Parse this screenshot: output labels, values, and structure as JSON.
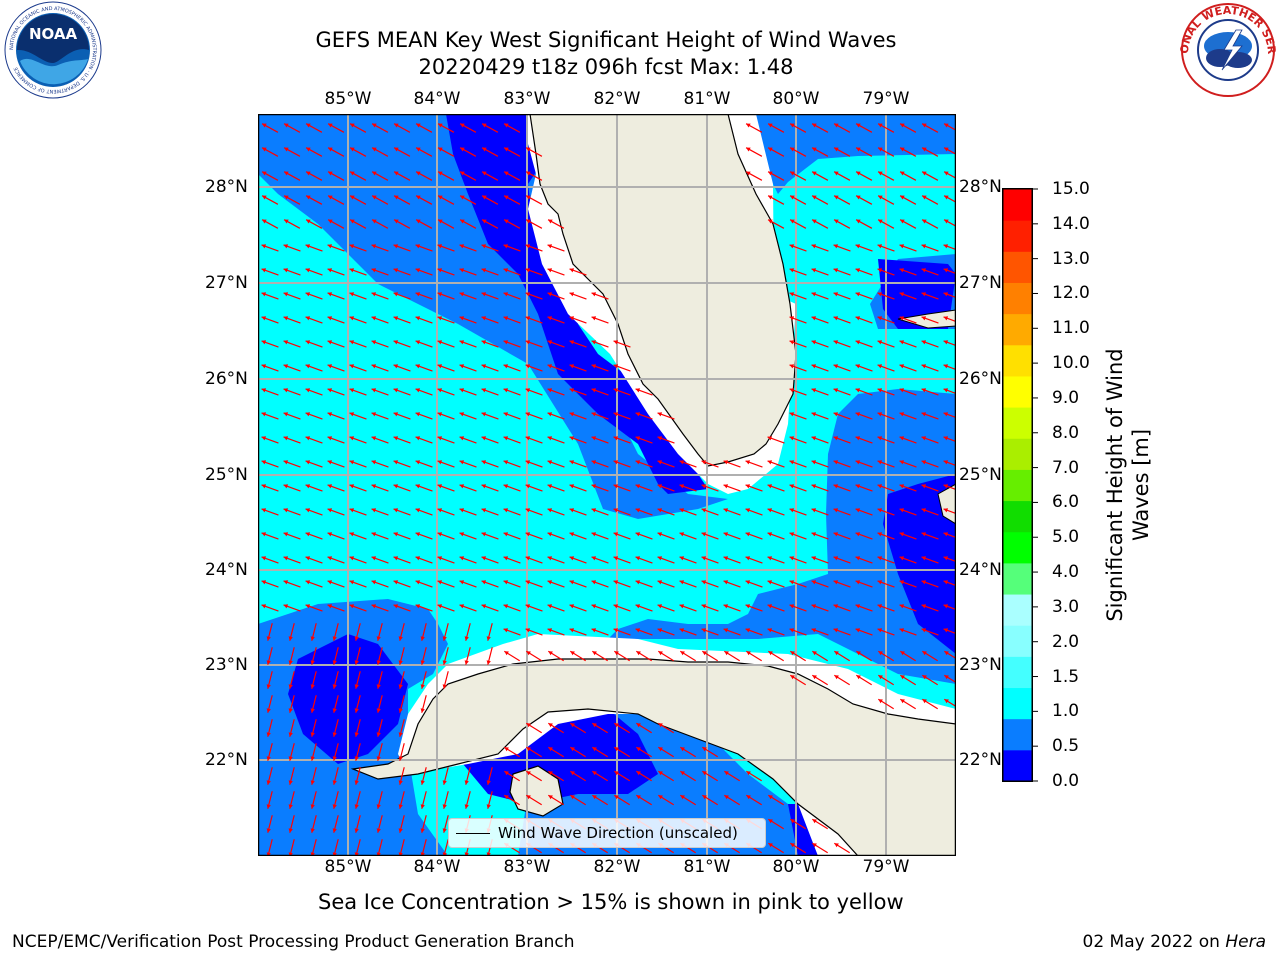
{
  "title": {
    "line1": "GEFS MEAN Key West Significant Height of Wind Waves",
    "line2": "20220429 t18z 096h fcst   Max: 1.48"
  },
  "logos": {
    "left": {
      "name": "noaa-logo",
      "text": "NOAA",
      "ring_text": "NATIONAL OCEANIC AND ATMOSPHERIC ADMINISTRATION · U.S. DEPARTMENT OF COMMERCE"
    },
    "right": {
      "name": "nws-logo",
      "ring_text": "NATIONAL WEATHER SERVICE"
    }
  },
  "map": {
    "lon_labels": [
      "85°W",
      "84°W",
      "83°W",
      "82°W",
      "81°W",
      "80°W",
      "79°W"
    ],
    "lat_labels": [
      "28°N",
      "27°N",
      "26°N",
      "25°N",
      "24°N",
      "23°N",
      "22°N"
    ],
    "land_color": "#eeeddf",
    "arrow_color": "#ff0000",
    "grid_color": "#b0b0b0"
  },
  "legend": {
    "label": "Wind Wave Direction (unscaled)"
  },
  "colorbar": {
    "label_line1": "Significant Height of Wind",
    "label_line2": "Waves [m]",
    "ticks": [
      "15.0",
      "14.0",
      "13.0",
      "12.0",
      "11.0",
      "10.0",
      "9.0",
      "8.0",
      "7.0",
      "6.0",
      "5.0",
      "4.0",
      "3.0",
      "2.0",
      "1.5",
      "1.0",
      "0.5",
      "0.0"
    ],
    "colors_bottom_to_top": [
      "#0000ff",
      "#0a7dff",
      "#00ffff",
      "#44ffff",
      "#88ffff",
      "#aaffff",
      "#55ff7a",
      "#00ff00",
      "#11dd00",
      "#66ee00",
      "#aaee00",
      "#ccff00",
      "#ffff00",
      "#ffe000",
      "#ffaa00",
      "#ff8000",
      "#ff5500",
      "#ff2000",
      "#ff0000"
    ]
  },
  "chart_data": {
    "type": "heatmap",
    "title": "GEFS MEAN Key West Significant Height of Wind Waves",
    "subtitle": "20220429 t18z 096h fcst   Max: 1.48",
    "variable": "Significant Height of Wind Waves [m]",
    "max": 1.48,
    "lon_range": [
      "86°W",
      "78.5°W"
    ],
    "lat_range": [
      "21°N",
      "28.8°N"
    ],
    "colorbar_levels": [
      0.0,
      0.5,
      1.0,
      1.5,
      2.0,
      3.0,
      4.0,
      5.0,
      6.0,
      7.0,
      8.0,
      9.0,
      10.0,
      11.0,
      12.0,
      13.0,
      14.0,
      15.0
    ],
    "dominant_class_m": "1.0-1.5",
    "grid": true,
    "vector_overlay": "Wind Wave Direction (unscaled)"
  },
  "notes": {
    "sea_ice": "Sea Ice Concentration > 15% is shown in pink to yellow"
  },
  "footer": {
    "left": "NCEP/EMC/Verification Post Processing Product Generation Branch",
    "right_date": "02 May 2022 on",
    "right_host": "Hera"
  }
}
